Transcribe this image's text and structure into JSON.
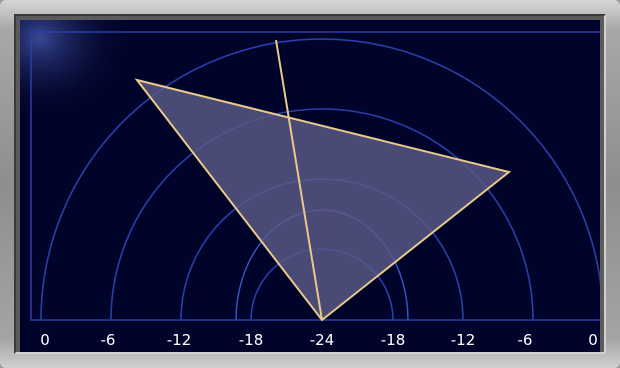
{
  "scale": {
    "ticks": [
      "0",
      "-6",
      "-12",
      "-18",
      "-24",
      "-18",
      "-12",
      "-6",
      "0"
    ]
  },
  "colors": {
    "background": "#01042a",
    "grid": "#2a3ea8",
    "shape_fill": "#5a5a88",
    "shape_stroke": "#e8c98a",
    "tick_text": "#ffffff"
  },
  "icons": {
    "polygon": "sound-field-triangle",
    "axis": "center-axis-line"
  }
}
